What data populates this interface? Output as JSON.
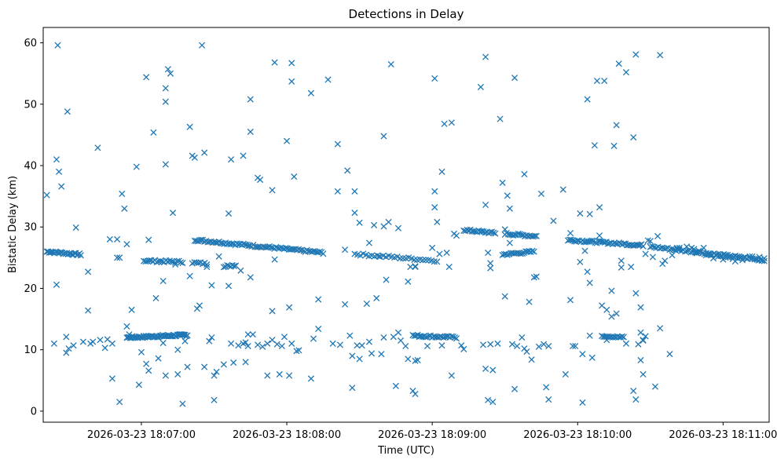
{
  "chart_data": {
    "type": "scatter",
    "title": "Detections in Delay",
    "xlabel": "Time (UTC)",
    "ylabel": "Bistatic Delay (km)",
    "x_unit": "seconds_since_18:06:00",
    "xlim": [
      19.5,
      319.0
    ],
    "ylim": [
      -1.8,
      62.5
    ],
    "xticks": [
      {
        "t": 60,
        "label": "2026-03-23 18:07:00"
      },
      {
        "t": 120,
        "label": "2026-03-23 18:08:00"
      },
      {
        "t": 180,
        "label": "2026-03-23 18:09:00"
      },
      {
        "t": 240,
        "label": "2026-03-23 18:10:00"
      },
      {
        "t": 300,
        "label": "2026-03-23 18:11:00"
      }
    ],
    "yticks": [
      0,
      10,
      20,
      30,
      40,
      50,
      60
    ],
    "grid": false,
    "legend": false,
    "marker": "x",
    "color": "#1f77b4",
    "tracks": [
      {
        "from": [
          21,
          26.0
        ],
        "to": [
          35,
          25.5
        ],
        "n": 28
      },
      {
        "from": [
          54,
          12.0
        ],
        "to": [
          79,
          12.4
        ],
        "n": 55
      },
      {
        "from": [
          61,
          24.5
        ],
        "to": [
          77,
          24.3
        ],
        "n": 22
      },
      {
        "from": [
          81,
          24.2
        ],
        "to": [
          87,
          24.0
        ],
        "n": 8
      },
      {
        "from": [
          82,
          27.9
        ],
        "to": [
          135,
          25.8
        ],
        "n": 80
      },
      {
        "from": [
          94,
          23.5
        ],
        "to": [
          99,
          23.8
        ],
        "n": 8
      },
      {
        "from": [
          148,
          25.6
        ],
        "to": [
          182,
          24.5
        ],
        "n": 30
      },
      {
        "from": [
          172,
          12.3
        ],
        "to": [
          190,
          12.0
        ],
        "n": 28
      },
      {
        "from": [
          193,
          29.5
        ],
        "to": [
          206,
          29.0
        ],
        "n": 20
      },
      {
        "from": [
          209,
          25.5
        ],
        "to": [
          222,
          26.0
        ],
        "n": 20
      },
      {
        "from": [
          210,
          28.9
        ],
        "to": [
          223,
          28.5
        ],
        "n": 20
      },
      {
        "from": [
          236,
          27.9
        ],
        "to": [
          267,
          27.0
        ],
        "n": 48
      },
      {
        "from": [
          250,
          12.3
        ],
        "to": [
          259,
          12.0
        ],
        "n": 15
      },
      {
        "from": [
          270,
          26.8
        ],
        "to": [
          317,
          24.6
        ],
        "n": 60
      }
    ],
    "points": [
      [
        21,
        35.2
      ],
      [
        24,
        11
      ],
      [
        25,
        20.6
      ],
      [
        25,
        41
      ],
      [
        25.5,
        59.6
      ],
      [
        26,
        39
      ],
      [
        27,
        36.6
      ],
      [
        29,
        9.5
      ],
      [
        29,
        12.1
      ],
      [
        29.5,
        48.8
      ],
      [
        30,
        10.2
      ],
      [
        32,
        10.7
      ],
      [
        33,
        29.9
      ],
      [
        36,
        11.3
      ],
      [
        38,
        22.7
      ],
      [
        38,
        16.4
      ],
      [
        39,
        11
      ],
      [
        40,
        11.3
      ],
      [
        42,
        42.9
      ],
      [
        43,
        11.6
      ],
      [
        45,
        10.3
      ],
      [
        46,
        11.7
      ],
      [
        47,
        28
      ],
      [
        48,
        5.3
      ],
      [
        48,
        11
      ],
      [
        50,
        28
      ],
      [
        50,
        25
      ],
      [
        51,
        1.5
      ],
      [
        51,
        25
      ],
      [
        52,
        35.4
      ],
      [
        53,
        33
      ],
      [
        54,
        27.2
      ],
      [
        54,
        13.8
      ],
      [
        55,
        12.5
      ],
      [
        56,
        16.5
      ],
      [
        58,
        39.8
      ],
      [
        59,
        4.3
      ],
      [
        60,
        9.6
      ],
      [
        62,
        7.7
      ],
      [
        62,
        54.4
      ],
      [
        63,
        6.6
      ],
      [
        63,
        27.9
      ],
      [
        65,
        45.4
      ],
      [
        66,
        18.4
      ],
      [
        67,
        8.6
      ],
      [
        69,
        11.1
      ],
      [
        69,
        21.2
      ],
      [
        70,
        40.2
      ],
      [
        70,
        50.4
      ],
      [
        70,
        5.8
      ],
      [
        70,
        52.6
      ],
      [
        71,
        55.7
      ],
      [
        72,
        55
      ],
      [
        73,
        32.3
      ],
      [
        74,
        23.9
      ],
      [
        75,
        10
      ],
      [
        75,
        6
      ],
      [
        77,
        1.2
      ],
      [
        78,
        11.4
      ],
      [
        79,
        7.2
      ],
      [
        80,
        46.3
      ],
      [
        80,
        22
      ],
      [
        81,
        41.6
      ],
      [
        82,
        41.3
      ],
      [
        83,
        16.7
      ],
      [
        84,
        17.2
      ],
      [
        85,
        59.6
      ],
      [
        86,
        7.2
      ],
      [
        86,
        42.1
      ],
      [
        87,
        23.5
      ],
      [
        88,
        11.4
      ],
      [
        89,
        12
      ],
      [
        89,
        20.5
      ],
      [
        90,
        5.8
      ],
      [
        90,
        1.8
      ],
      [
        91,
        6.4
      ],
      [
        92,
        25.2
      ],
      [
        94,
        7.6
      ],
      [
        96,
        20.4
      ],
      [
        96,
        32.2
      ],
      [
        97,
        41
      ],
      [
        97,
        11
      ],
      [
        98,
        7.9
      ],
      [
        100,
        10.7
      ],
      [
        101,
        22.9
      ],
      [
        102,
        41.6
      ],
      [
        102,
        11
      ],
      [
        103,
        8
      ],
      [
        103,
        11.2
      ],
      [
        104,
        10.6
      ],
      [
        104,
        12.5
      ],
      [
        105,
        21.8
      ],
      [
        105,
        45.5
      ],
      [
        105,
        50.8
      ],
      [
        106,
        12.5
      ],
      [
        108,
        38
      ],
      [
        108,
        10.8
      ],
      [
        109,
        37.7
      ],
      [
        110,
        10.5
      ],
      [
        112,
        11
      ],
      [
        112,
        5.8
      ],
      [
        114,
        11.6
      ],
      [
        114,
        36
      ],
      [
        114,
        16.3
      ],
      [
        115,
        24.7
      ],
      [
        115,
        56.8
      ],
      [
        116,
        10.9
      ],
      [
        117,
        6
      ],
      [
        118,
        10.6
      ],
      [
        119,
        12.1
      ],
      [
        120,
        44
      ],
      [
        121,
        5.8
      ],
      [
        121,
        16.9
      ],
      [
        122,
        11
      ],
      [
        122,
        53.7
      ],
      [
        122,
        56.7
      ],
      [
        123,
        38.2
      ],
      [
        124,
        9.8
      ],
      [
        125,
        9.9
      ],
      [
        130,
        5.3
      ],
      [
        130,
        51.8
      ],
      [
        131,
        11.8
      ],
      [
        133,
        13.4
      ],
      [
        133,
        18.2
      ],
      [
        137,
        54
      ],
      [
        139,
        11
      ],
      [
        141,
        43.5
      ],
      [
        141,
        35.8
      ],
      [
        142,
        10.8
      ],
      [
        144,
        26.3
      ],
      [
        144,
        17.4
      ],
      [
        145,
        39.2
      ],
      [
        146,
        12.3
      ],
      [
        147,
        3.8
      ],
      [
        147,
        9
      ],
      [
        148,
        32.3
      ],
      [
        148,
        35.8
      ],
      [
        149,
        10.7
      ],
      [
        150,
        8.5
      ],
      [
        150,
        30.7
      ],
      [
        151,
        10.7
      ],
      [
        153,
        17.5
      ],
      [
        154,
        27.4
      ],
      [
        154,
        11.3
      ],
      [
        155,
        9.4
      ],
      [
        156,
        30.3
      ],
      [
        157,
        18.4
      ],
      [
        158,
        25.2
      ],
      [
        159,
        9.3
      ],
      [
        160,
        30.1
      ],
      [
        160,
        44.8
      ],
      [
        160,
        12
      ],
      [
        161,
        21.4
      ],
      [
        162,
        30.8
      ],
      [
        163,
        56.5
      ],
      [
        164,
        12.1
      ],
      [
        165,
        4.1
      ],
      [
        166,
        12.8
      ],
      [
        166,
        29.8
      ],
      [
        167,
        11.5
      ],
      [
        169,
        10.6
      ],
      [
        170,
        8.5
      ],
      [
        170,
        21.1
      ],
      [
        171,
        23.5
      ],
      [
        172,
        3.3
      ],
      [
        173,
        8.2
      ],
      [
        173,
        2.8
      ],
      [
        173,
        23.5
      ],
      [
        173,
        23.6
      ],
      [
        174,
        8.3
      ],
      [
        175,
        12.2
      ],
      [
        178,
        10.6
      ],
      [
        180,
        26.6
      ],
      [
        181,
        54.2
      ],
      [
        181,
        35.8
      ],
      [
        181,
        33.2
      ],
      [
        182,
        30.8
      ],
      [
        183,
        25.6
      ],
      [
        184,
        39
      ],
      [
        184,
        10.7
      ],
      [
        185,
        46.8
      ],
      [
        186,
        25.8
      ],
      [
        187,
        23.5
      ],
      [
        188,
        47
      ],
      [
        188,
        5.8
      ],
      [
        189,
        28.9
      ],
      [
        190,
        28.6
      ],
      [
        192,
        10.7
      ],
      [
        193,
        10.1
      ],
      [
        200,
        52.8
      ],
      [
        201,
        10.8
      ],
      [
        202,
        57.7
      ],
      [
        202,
        33.6
      ],
      [
        203,
        25.8
      ],
      [
        202,
        6.9
      ],
      [
        203,
        1.8
      ],
      [
        204,
        24.1
      ],
      [
        204,
        23.3
      ],
      [
        204,
        10.9
      ],
      [
        205,
        6.7
      ],
      [
        205,
        1.5
      ],
      [
        207,
        11
      ],
      [
        208,
        47.6
      ],
      [
        209,
        37.2
      ],
      [
        210,
        18.7
      ],
      [
        210,
        29.6
      ],
      [
        211,
        35.1
      ],
      [
        212,
        33
      ],
      [
        212,
        27.4
      ],
      [
        213,
        10.9
      ],
      [
        214,
        54.3
      ],
      [
        214,
        3.6
      ],
      [
        215,
        10.6
      ],
      [
        217,
        12
      ],
      [
        218,
        38.6
      ],
      [
        218,
        10.2
      ],
      [
        219,
        9.7
      ],
      [
        220,
        17.8
      ],
      [
        221,
        8.4
      ],
      [
        222,
        21.8
      ],
      [
        223,
        21.9
      ],
      [
        224,
        10.5
      ],
      [
        225,
        35.4
      ],
      [
        226,
        10.9
      ],
      [
        227,
        3.9
      ],
      [
        228,
        10.6
      ],
      [
        228,
        1.9
      ],
      [
        230,
        31
      ],
      [
        234,
        36.1
      ],
      [
        235,
        6
      ],
      [
        237,
        29
      ],
      [
        237,
        18.1
      ],
      [
        238,
        10.6
      ],
      [
        239,
        10.6
      ],
      [
        241,
        32.2
      ],
      [
        241,
        24.3
      ],
      [
        242,
        1.4
      ],
      [
        242,
        9.3
      ],
      [
        243,
        26.1
      ],
      [
        244,
        22.7
      ],
      [
        244,
        50.8
      ],
      [
        245,
        32.1
      ],
      [
        245,
        20.9
      ],
      [
        245,
        12.3
      ],
      [
        246,
        8.7
      ],
      [
        247,
        43.3
      ],
      [
        248,
        53.8
      ],
      [
        249,
        33.2
      ],
      [
        249,
        28.6
      ],
      [
        250,
        17.2
      ],
      [
        251,
        53.8
      ],
      [
        252,
        11.6
      ],
      [
        252,
        16.5
      ],
      [
        254,
        19.6
      ],
      [
        254,
        15.4
      ],
      [
        255,
        43.2
      ],
      [
        256,
        46.6
      ],
      [
        256,
        15.9
      ],
      [
        257,
        56.6
      ],
      [
        258,
        24.5
      ],
      [
        258,
        23.4
      ],
      [
        260,
        11
      ],
      [
        260,
        55.2
      ],
      [
        262,
        23.5
      ],
      [
        263,
        44.6
      ],
      [
        263,
        3.3
      ],
      [
        264,
        19.2
      ],
      [
        264,
        1.9
      ],
      [
        264,
        58.1
      ],
      [
        265,
        10.9
      ],
      [
        266,
        12.8
      ],
      [
        266,
        16.9
      ],
      [
        266,
        8.3
      ],
      [
        267,
        11.5
      ],
      [
        267,
        11.6
      ],
      [
        267,
        6
      ],
      [
        268,
        12.2
      ],
      [
        269,
        27.8
      ],
      [
        270,
        27.7
      ],
      [
        271,
        25.1
      ],
      [
        272,
        4
      ],
      [
        273,
        28.5
      ],
      [
        274,
        58
      ],
      [
        274,
        13.5
      ],
      [
        275,
        24
      ],
      [
        276,
        24.5
      ],
      [
        278,
        9.3
      ],
      [
        279,
        25.4
      ],
      [
        281,
        26.6
      ],
      [
        282,
        26.6
      ],
      [
        268,
        25.6
      ],
      [
        285,
        26.8
      ],
      [
        287,
        26.6
      ],
      [
        288,
        26.4
      ],
      [
        289,
        25.9
      ],
      [
        290,
        26.1
      ],
      [
        292,
        26.6
      ],
      [
        293,
        25.4
      ],
      [
        294,
        25.5
      ],
      [
        295,
        25.5
      ],
      [
        296,
        24.9
      ],
      [
        298,
        25.2
      ],
      [
        299,
        25.3
      ],
      [
        300,
        24.7
      ],
      [
        301,
        25.0
      ],
      [
        302,
        25.1
      ],
      [
        303,
        25.3
      ],
      [
        304,
        24.8
      ],
      [
        305,
        24.4
      ],
      [
        306,
        24.9
      ],
      [
        307,
        25.0
      ],
      [
        308,
        24.6
      ],
      [
        309,
        25.0
      ],
      [
        310,
        24.8
      ],
      [
        311,
        25.2
      ],
      [
        312,
        25.2
      ],
      [
        313,
        24.8
      ],
      [
        314,
        24.7
      ],
      [
        315,
        25.1
      ],
      [
        316,
        24.5
      ],
      [
        317,
        24.9
      ]
    ]
  }
}
